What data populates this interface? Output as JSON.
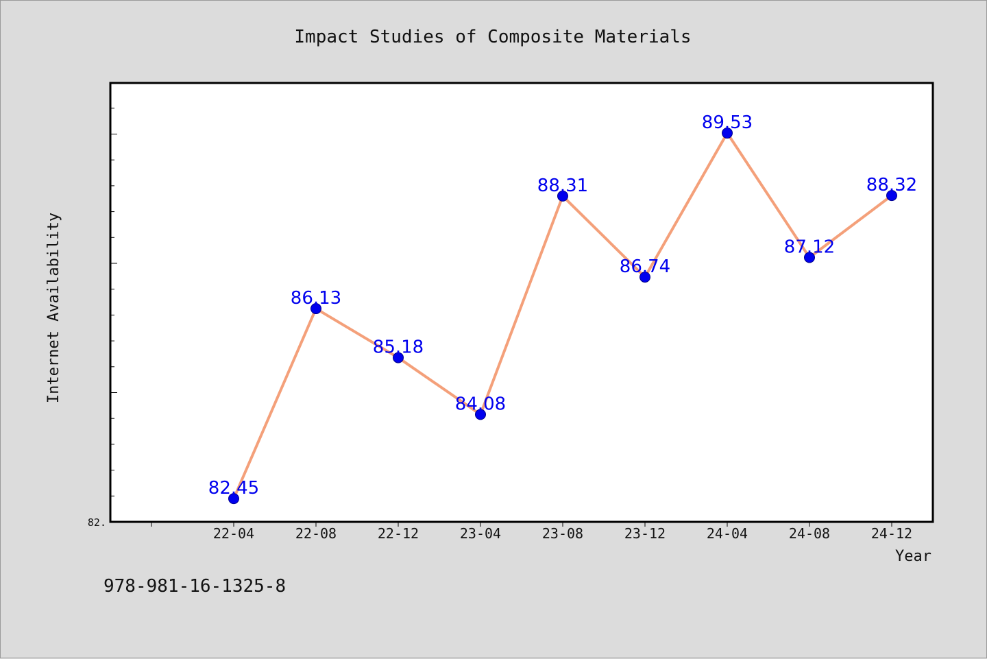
{
  "chart_data": {
    "type": "line",
    "title": "Impact Studies of Composite Materials",
    "xlabel": "Year",
    "ylabel": "Internet Availability",
    "categories": [
      "22-04",
      "22-08",
      "22-12",
      "23-04",
      "23-08",
      "23-12",
      "24-04",
      "24-08",
      "24-12"
    ],
    "values": [
      82.45,
      86.13,
      85.18,
      84.08,
      88.31,
      86.74,
      89.53,
      87.12,
      88.32
    ],
    "data_labels": [
      "82.45",
      "86.13",
      "85.18",
      "84.08",
      "88.31",
      "86.74",
      "89.53",
      "87.12",
      "88.32"
    ],
    "ylim": [
      82.0,
      90.5
    ],
    "y_min_tick_label": "82.",
    "grid": false,
    "legend": "none",
    "line_color": "#f4a07a",
    "marker_color": "#0000ee",
    "label_color": "#0000ee"
  },
  "footer": {
    "isbn": "978-981-16-1325-8"
  }
}
